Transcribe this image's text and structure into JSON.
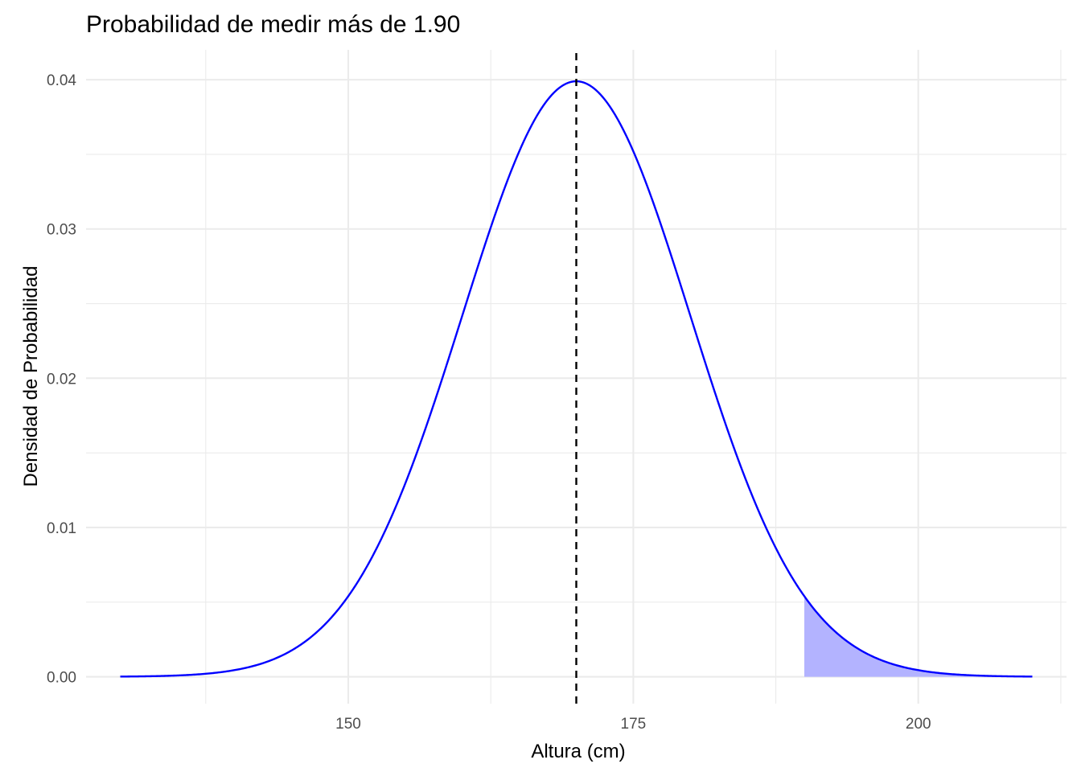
{
  "chart_data": {
    "type": "area",
    "title": "Probabilidad de medir más de 1.90",
    "xlabel": "Altura (cm)",
    "ylabel": "Densidad de Probabilidad",
    "xlim": [
      127,
      213
    ],
    "ylim": [
      -0.0018,
      0.042
    ],
    "x_ticks": [
      150,
      175,
      200
    ],
    "x_tick_labels": [
      "150",
      "175",
      "200"
    ],
    "y_ticks": [
      0.0,
      0.01,
      0.02,
      0.03,
      0.04
    ],
    "y_tick_labels": [
      "0.00",
      "0.01",
      "0.02",
      "0.03",
      "0.04"
    ],
    "grid": true,
    "series": [
      {
        "kind": "normal-density",
        "mean": 170,
        "sd": 10,
        "x_range": [
          130,
          210
        ],
        "color": "#0000ff"
      }
    ],
    "shaded_region": {
      "from": 190,
      "to": 210,
      "color": "#b3b3ff"
    },
    "vertical_line": {
      "x": 170,
      "style": "dashed",
      "color": "#000000"
    }
  }
}
